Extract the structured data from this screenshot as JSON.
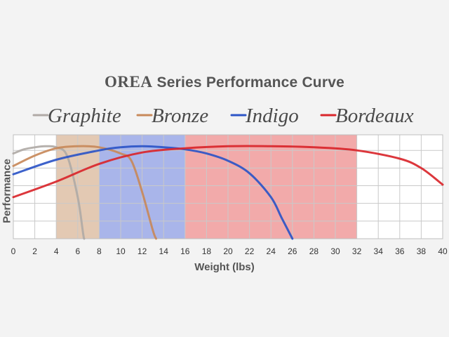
{
  "chart_data": {
    "type": "line",
    "title_brand": "OREA",
    "title_rest": "Series Performance Curve",
    "xlabel": "Weight (lbs)",
    "ylabel": "Performance",
    "xlim": [
      0,
      40
    ],
    "x_ticks": [
      0,
      2,
      4,
      6,
      8,
      10,
      12,
      14,
      16,
      18,
      20,
      22,
      24,
      26,
      28,
      30,
      32,
      34,
      36,
      38,
      40
    ],
    "ylim": [
      0,
      100
    ],
    "grid": {
      "vertical": true,
      "horizontal": true
    },
    "legend_position": "top",
    "series": [
      {
        "name": "Graphite",
        "color": "#b0aaa6",
        "range": [
          0,
          4
        ],
        "range_color": "#ffffff",
        "points": [
          [
            0,
            82
          ],
          [
            1,
            86
          ],
          [
            2,
            88
          ],
          [
            3,
            89
          ],
          [
            4,
            88
          ],
          [
            5,
            80
          ],
          [
            6,
            40
          ],
          [
            6.5,
            5
          ],
          [
            6.6,
            0
          ]
        ]
      },
      {
        "name": "Bronze",
        "color": "#c8895a",
        "range": [
          4,
          8
        ],
        "range_color": "#e3c9b3",
        "points": [
          [
            0,
            70
          ],
          [
            2,
            80
          ],
          [
            4,
            87
          ],
          [
            6,
            89
          ],
          [
            8,
            88
          ],
          [
            10,
            82
          ],
          [
            11,
            75
          ],
          [
            12,
            45
          ],
          [
            13,
            8
          ],
          [
            13.3,
            0
          ]
        ]
      },
      {
        "name": "Indigo",
        "color": "#2c55c7",
        "range": [
          8,
          16
        ],
        "range_color": "#a9b5ea",
        "points": [
          [
            0,
            62
          ],
          [
            4,
            76
          ],
          [
            8,
            85
          ],
          [
            10,
            88
          ],
          [
            12,
            89
          ],
          [
            14,
            88
          ],
          [
            16,
            86
          ],
          [
            18,
            82
          ],
          [
            20,
            75
          ],
          [
            22,
            63
          ],
          [
            24,
            40
          ],
          [
            25,
            20
          ],
          [
            26,
            0
          ]
        ]
      },
      {
        "name": "Bordeaux",
        "color": "#d9262b",
        "range": [
          16,
          32
        ],
        "range_color": "#f2aaaa",
        "points": [
          [
            0,
            40
          ],
          [
            4,
            55
          ],
          [
            8,
            72
          ],
          [
            12,
            83
          ],
          [
            16,
            87
          ],
          [
            20,
            89
          ],
          [
            24,
            89
          ],
          [
            28,
            88
          ],
          [
            32,
            85
          ],
          [
            36,
            77
          ],
          [
            38,
            68
          ],
          [
            40,
            52
          ]
        ]
      }
    ]
  }
}
